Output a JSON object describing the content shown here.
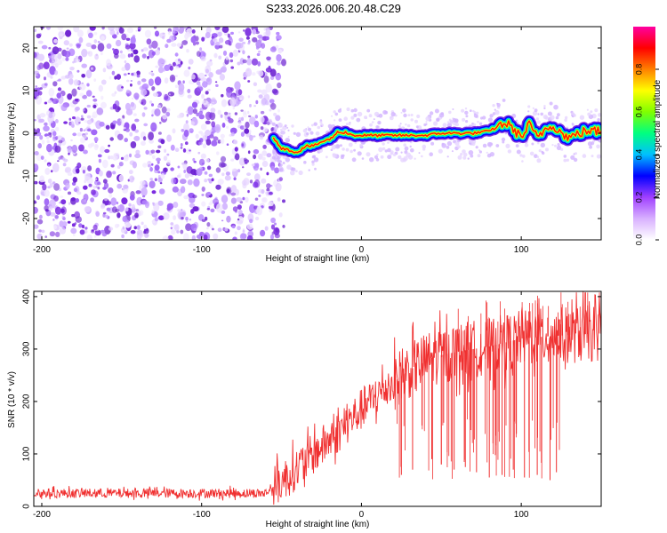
{
  "title": "S233.2026.006.20.48.C29",
  "chart_data": [
    {
      "type": "heatmap",
      "xlabel": "Height of straight line (km)",
      "ylabel": "Frequency (Hz)",
      "xlim": [
        -205,
        150
      ],
      "ylim": [
        -25,
        25
      ],
      "xticks": [
        -200,
        -100,
        0,
        100
      ],
      "yticks": [
        -20,
        -10,
        0,
        10,
        20
      ],
      "noise_region": {
        "x_max": -53,
        "color": "#7a2be0"
      },
      "ridge_path": [
        {
          "x": -55,
          "y": -1
        },
        {
          "x": -50,
          "y": -3.5
        },
        {
          "x": -40,
          "y": -4.5
        },
        {
          "x": -35,
          "y": -3
        },
        {
          "x": -30,
          "y": -3
        },
        {
          "x": -25,
          "y": -2
        },
        {
          "x": -20,
          "y": -1.5
        },
        {
          "x": -15,
          "y": 0.2
        },
        {
          "x": -10,
          "y": 0.2
        },
        {
          "x": -5,
          "y": -0.5
        },
        {
          "x": 0,
          "y": -0.5
        },
        {
          "x": 20,
          "y": -0.5
        },
        {
          "x": 40,
          "y": -0.5
        },
        {
          "x": 50,
          "y": 0
        },
        {
          "x": 60,
          "y": 0
        },
        {
          "x": 70,
          "y": 0
        },
        {
          "x": 80,
          "y": 0.5
        },
        {
          "x": 90,
          "y": 2.5
        },
        {
          "x": 95,
          "y": 1
        },
        {
          "x": 100,
          "y": -1
        },
        {
          "x": 105,
          "y": 2
        },
        {
          "x": 110,
          "y": -1
        },
        {
          "x": 115,
          "y": 1
        },
        {
          "x": 120,
          "y": 2
        },
        {
          "x": 125,
          "y": 0
        },
        {
          "x": 130,
          "y": -1
        },
        {
          "x": 140,
          "y": 0.5
        },
        {
          "x": 150,
          "y": 0.5
        }
      ],
      "colorbar": {
        "label": "Normalized spectral amplitude",
        "range": [
          0,
          1
        ],
        "ticks": [
          "0.0",
          "0.2",
          "0.4",
          "0.6",
          "0.8"
        ],
        "colors": [
          "#ffffff",
          "#d8b0ff",
          "#a040ff",
          "#0000ff",
          "#00c0ff",
          "#00ff80",
          "#80ff00",
          "#ffff00",
          "#ff8000",
          "#ff0000",
          "#ff00a0"
        ]
      }
    },
    {
      "type": "line",
      "xlabel": "Height of straight line (km)",
      "ylabel": "SNR (10 * v/v)",
      "xlim": [
        -205,
        150
      ],
      "ylim": [
        0,
        410
      ],
      "xticks": [
        -200,
        -100,
        0,
        100
      ],
      "yticks": [
        0,
        100,
        200,
        300,
        400
      ],
      "color": "#f03030",
      "series_profile": [
        {
          "x": -205,
          "y": 25
        },
        {
          "x": -60,
          "y": 25
        },
        {
          "x": -45,
          "y": 60
        },
        {
          "x": -30,
          "y": 100
        },
        {
          "x": -15,
          "y": 140
        },
        {
          "x": 0,
          "y": 185
        },
        {
          "x": 15,
          "y": 225
        },
        {
          "x": 30,
          "y": 260
        },
        {
          "x": 45,
          "y": 285
        },
        {
          "x": 60,
          "y": 295
        },
        {
          "x": 80,
          "y": 305
        },
        {
          "x": 100,
          "y": 320
        },
        {
          "x": 120,
          "y": 325
        },
        {
          "x": 150,
          "y": 330
        }
      ],
      "dropouts": [
        {
          "x": 25,
          "y": 60
        },
        {
          "x": 32,
          "y": 70
        },
        {
          "x": 44,
          "y": 90
        },
        {
          "x": 50,
          "y": 80
        },
        {
          "x": 58,
          "y": 70
        },
        {
          "x": 65,
          "y": 75
        },
        {
          "x": 72,
          "y": 65
        },
        {
          "x": 80,
          "y": 55
        },
        {
          "x": 88,
          "y": 60
        },
        {
          "x": 95,
          "y": 70
        },
        {
          "x": 102,
          "y": 55
        },
        {
          "x": 110,
          "y": 60
        },
        {
          "x": 118,
          "y": 50
        },
        {
          "x": 122,
          "y": 65
        }
      ]
    }
  ]
}
